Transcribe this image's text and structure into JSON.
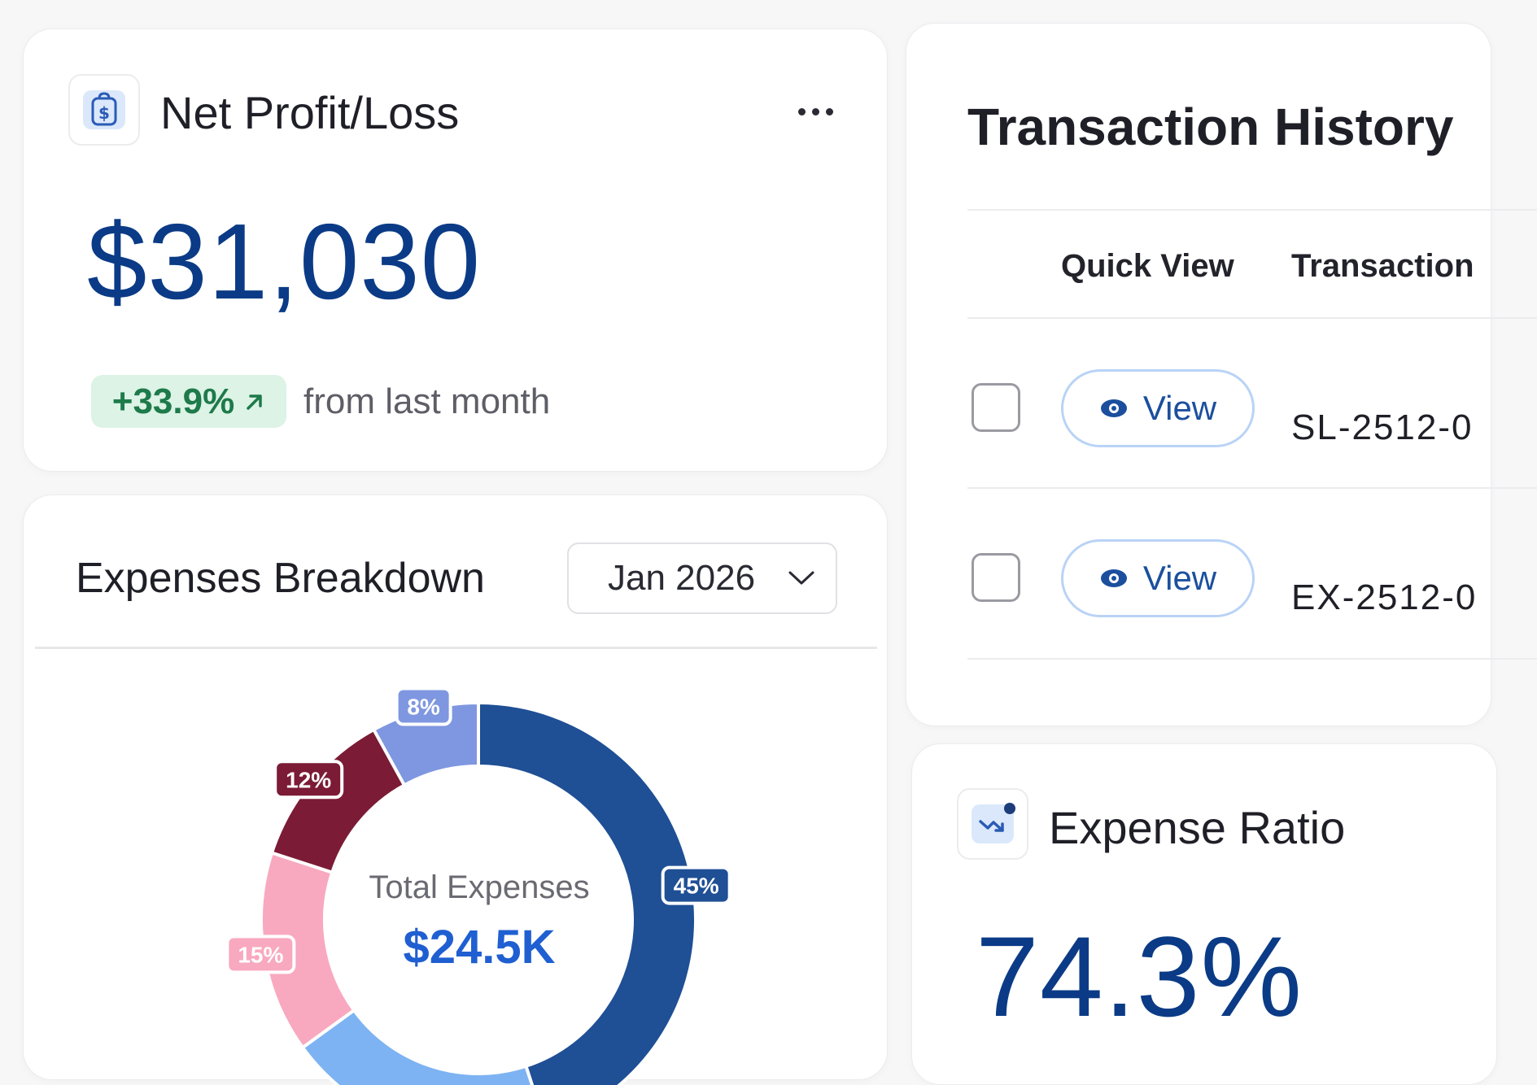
{
  "net_profit": {
    "title": "Net Profit/Loss",
    "value": "$31,030",
    "change": "+33.9%",
    "change_caption": "from last month",
    "icon": "money-bag-icon",
    "colors": {
      "value": "#0b3b86",
      "badge_bg": "#dcf3e6",
      "badge_text": "#1e7a4a"
    }
  },
  "expenses_breakdown": {
    "title": "Expenses Breakdown",
    "period_select": "Jan 2026",
    "center_label": "Total Expenses",
    "center_value": "$24.5K"
  },
  "chart_data": {
    "type": "pie",
    "title": "Expenses Breakdown",
    "segments": [
      {
        "label": "45%",
        "value": 45,
        "color": "#1f4f95"
      },
      {
        "label": "",
        "value": 20,
        "color": "#7db3f2"
      },
      {
        "label": "15%",
        "value": 15,
        "color": "#f8a9bf"
      },
      {
        "label": "12%",
        "value": 12,
        "color": "#7b1b35"
      },
      {
        "label": "8%",
        "value": 8,
        "color": "#7f97e0"
      }
    ]
  },
  "transactions": {
    "title": "Transaction History",
    "columns": [
      "",
      "Quick View",
      "Transaction"
    ],
    "rows": [
      {
        "action": "View",
        "id": "SL-2512-0"
      },
      {
        "action": "View",
        "id": "EX-2512-0"
      }
    ]
  },
  "expense_ratio": {
    "title": "Expense Ratio",
    "value": "74.3%",
    "icon": "trending-down-icon"
  }
}
